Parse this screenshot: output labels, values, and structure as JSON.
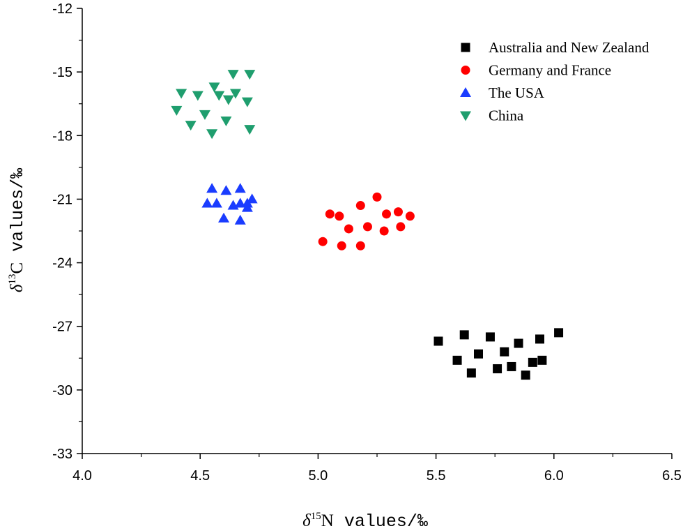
{
  "chart_data": {
    "type": "scatter",
    "title": "",
    "xlabel": {
      "symbol": "δ",
      "superscript": "15",
      "element": "N",
      "rest": " values/‰"
    },
    "ylabel": {
      "symbol": "δ",
      "superscript": "13",
      "element": "C",
      "rest": " values/‰"
    },
    "xlim": [
      4.0,
      6.5
    ],
    "ylim": [
      -33,
      -12
    ],
    "xticks": [
      "4.0",
      "4.5",
      "5.0",
      "5.5",
      "6.0",
      "6.5"
    ],
    "yticks": [
      "-12",
      "-15",
      "-18",
      "-21",
      "-24",
      "-27",
      "-30",
      "-33"
    ],
    "grid": false,
    "legend_position": "top-right",
    "series": [
      {
        "name": "Australia and New Zealand",
        "marker": "square",
        "color": "#000000",
        "points": [
          [
            5.51,
            -27.7
          ],
          [
            5.59,
            -28.6
          ],
          [
            5.62,
            -27.4
          ],
          [
            5.65,
            -29.2
          ],
          [
            5.68,
            -28.3
          ],
          [
            5.73,
            -27.5
          ],
          [
            5.76,
            -29.0
          ],
          [
            5.79,
            -28.2
          ],
          [
            5.82,
            -28.9
          ],
          [
            5.85,
            -27.8
          ],
          [
            5.88,
            -29.3
          ],
          [
            5.91,
            -28.7
          ],
          [
            5.94,
            -27.6
          ],
          [
            5.95,
            -28.6
          ],
          [
            6.02,
            -27.3
          ]
        ]
      },
      {
        "name": "Germany and France",
        "marker": "circle",
        "color": "#ff0000",
        "points": [
          [
            5.02,
            -23.0
          ],
          [
            5.05,
            -21.7
          ],
          [
            5.09,
            -21.8
          ],
          [
            5.1,
            -23.2
          ],
          [
            5.13,
            -22.4
          ],
          [
            5.18,
            -21.3
          ],
          [
            5.18,
            -23.2
          ],
          [
            5.21,
            -22.3
          ],
          [
            5.25,
            -20.9
          ],
          [
            5.28,
            -22.5
          ],
          [
            5.29,
            -21.7
          ],
          [
            5.34,
            -21.6
          ],
          [
            5.35,
            -22.3
          ],
          [
            5.39,
            -21.8
          ]
        ]
      },
      {
        "name": "The USA",
        "marker": "triangle-up",
        "color": "#1a3cff",
        "points": [
          [
            4.53,
            -21.2
          ],
          [
            4.55,
            -20.5
          ],
          [
            4.57,
            -21.2
          ],
          [
            4.6,
            -21.9
          ],
          [
            4.61,
            -20.6
          ],
          [
            4.64,
            -21.3
          ],
          [
            4.67,
            -21.2
          ],
          [
            4.67,
            -20.5
          ],
          [
            4.67,
            -22.0
          ],
          [
            4.7,
            -21.4
          ],
          [
            4.7,
            -21.2
          ],
          [
            4.72,
            -21.0
          ]
        ]
      },
      {
        "name": "China",
        "marker": "triangle-down",
        "color": "#1f9e6e",
        "points": [
          [
            4.4,
            -16.8
          ],
          [
            4.42,
            -16.0
          ],
          [
            4.46,
            -17.5
          ],
          [
            4.49,
            -16.1
          ],
          [
            4.52,
            -17.0
          ],
          [
            4.55,
            -17.9
          ],
          [
            4.56,
            -15.7
          ],
          [
            4.58,
            -16.1
          ],
          [
            4.61,
            -17.3
          ],
          [
            4.62,
            -16.3
          ],
          [
            4.64,
            -15.1
          ],
          [
            4.65,
            -16.0
          ],
          [
            4.7,
            -16.4
          ],
          [
            4.71,
            -17.7
          ],
          [
            4.71,
            -15.1
          ]
        ]
      }
    ]
  }
}
